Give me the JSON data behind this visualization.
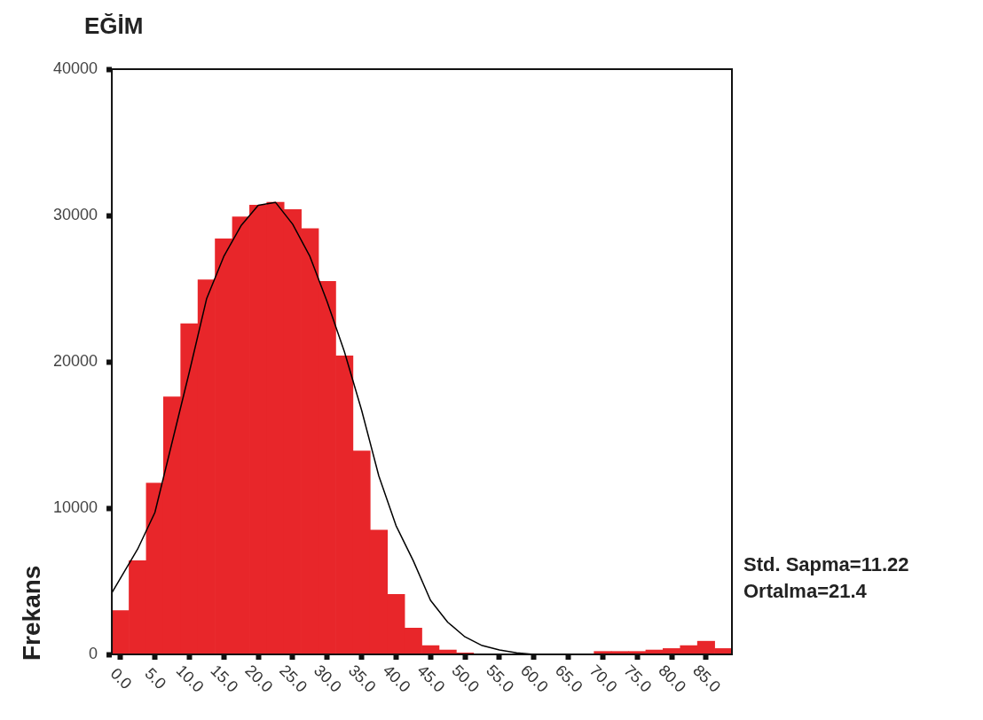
{
  "chart_data": {
    "type": "histogram",
    "title": "EĞİM",
    "ylabel": "Frekans",
    "bins": [
      -1.25,
      1.25,
      3.75,
      6.25,
      8.75,
      11.25,
      13.75,
      16.25,
      18.75,
      21.25,
      23.75,
      26.25,
      28.75,
      31.25,
      33.75,
      36.25,
      38.75,
      41.25,
      43.75,
      46.25,
      48.75,
      51.25,
      53.75,
      56.25,
      58.75,
      61.25,
      63.75,
      66.25,
      68.75,
      71.25,
      73.75,
      76.25,
      78.75,
      81.25,
      83.75,
      86.25,
      88.75
    ],
    "values": [
      3000,
      6400,
      11700,
      17600,
      22600,
      25600,
      28400,
      29900,
      30700,
      30900,
      30400,
      29100,
      25500,
      20400,
      13900,
      8500,
      4100,
      1800,
      600,
      300,
      100,
      null,
      0,
      0,
      0,
      0,
      0,
      0,
      200,
      200,
      200,
      300,
      400,
      600,
      900,
      400
    ],
    "color": "#e8262a",
    "series": [
      {
        "type": "line",
        "color": "#000000",
        "x": [
          -1.25,
          2.5,
          5,
          7.5,
          10,
          12.5,
          15,
          17.5,
          20,
          22.5,
          25,
          27.5,
          30,
          32.5,
          35,
          37.5,
          40,
          42.5,
          45,
          47.5,
          50,
          52.5,
          55,
          57.5,
          60,
          65
        ],
        "values": [
          4200,
          7200,
          9700,
          14500,
          19300,
          24300,
          27200,
          29300,
          30700,
          30900,
          29400,
          27200,
          24100,
          20700,
          16700,
          12200,
          8800,
          6400,
          3700,
          2200,
          1200,
          600,
          300,
          100,
          0,
          0
        ]
      }
    ],
    "xlim": [
      -1.25,
      88.75
    ],
    "xticks": [
      {
        "value": 0,
        "label": "0.0"
      },
      {
        "value": 5,
        "label": "5.0"
      },
      {
        "value": 10,
        "label": "10.0"
      },
      {
        "value": 15,
        "label": "15.0"
      },
      {
        "value": 20,
        "label": "20.0"
      },
      {
        "value": 25,
        "label": "25.0"
      },
      {
        "value": 30,
        "label": "30.0"
      },
      {
        "value": 35,
        "label": "35.0"
      },
      {
        "value": 40,
        "label": "40.0"
      },
      {
        "value": 45,
        "label": "45.0"
      },
      {
        "value": 50,
        "label": "50.0"
      },
      {
        "value": 55,
        "label": "55.0"
      },
      {
        "value": 60,
        "label": "60.0"
      },
      {
        "value": 65,
        "label": "65.0"
      },
      {
        "value": 70,
        "label": "70.0"
      },
      {
        "value": 75,
        "label": "75.0"
      },
      {
        "value": 80,
        "label": "80.0"
      },
      {
        "value": 85,
        "label": "85.0"
      }
    ],
    "ylim": [
      0,
      40000
    ],
    "yticks": [
      0,
      10000,
      20000,
      30000,
      40000
    ],
    "marker": "none",
    "annotations": [
      "Std. Sapma=11.22",
      "Ortalma=21.4"
    ]
  }
}
